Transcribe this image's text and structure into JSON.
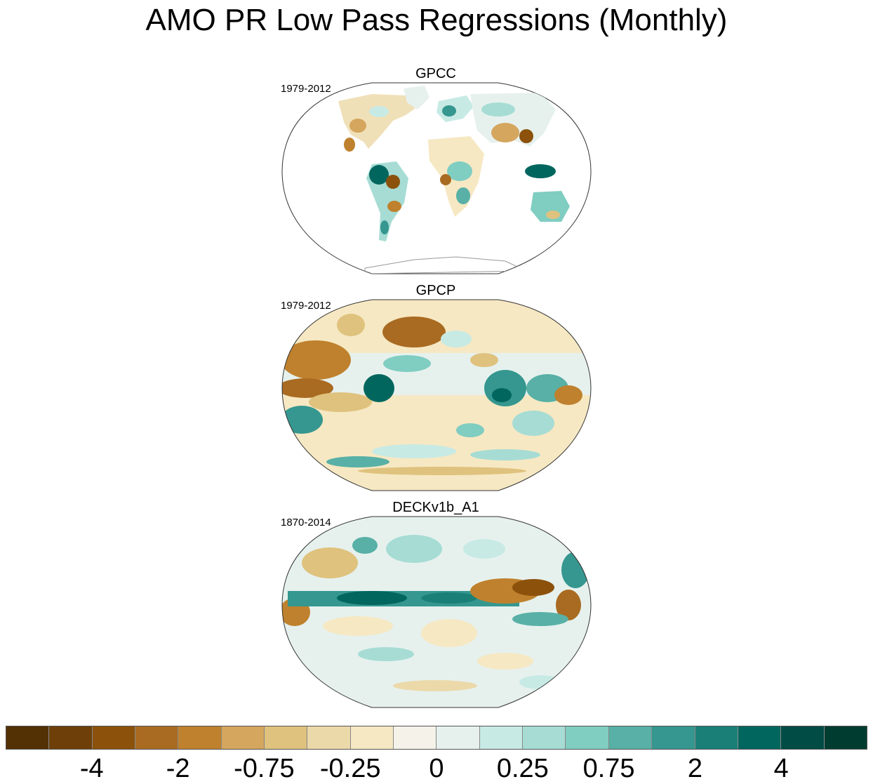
{
  "figure": {
    "title": "AMO PR Low Pass Regressions (Monthly)"
  },
  "panels": [
    {
      "title": "GPCC",
      "years": "1979-2012",
      "data_coverage": "land-only"
    },
    {
      "title": "GPCP",
      "years": "1979-2012",
      "data_coverage": "global"
    },
    {
      "title": "DECKv1b_A1",
      "years": "1870-2014",
      "data_coverage": "global"
    }
  ],
  "colorbar": {
    "colors": [
      "#543005",
      "#6e3f09",
      "#8c510a",
      "#a96b21",
      "#bf812d",
      "#d5a65e",
      "#dfc27d",
      "#ecd9aa",
      "#f6e8c3",
      "#f5f2ea",
      "#e6f1ee",
      "#c7eae5",
      "#a6dcd4",
      "#80cdc1",
      "#58b0a6",
      "#35978f",
      "#1a8077",
      "#01665e",
      "#014c45",
      "#003c30"
    ],
    "labels": [
      "-4",
      "-2",
      "-0.75",
      "-0.25",
      "0",
      "0.25",
      "0.75",
      "2",
      "4"
    ]
  },
  "chart_data": {
    "type": "heatmap",
    "title": "AMO PR Low Pass Regressions (Monthly)",
    "projection": "Winkel Tripel (global)",
    "panels": [
      "GPCC 1979-2012",
      "GPCP 1979-2012",
      "DECKv1b_A1 1870-2014"
    ],
    "levels": [
      -4,
      -2,
      -0.75,
      -0.25,
      0,
      0.25,
      0.75,
      2,
      4
    ],
    "colorbar_ticks": [
      "-4",
      "-2",
      "-0.75",
      "-0.25",
      "0",
      "0.25",
      "0.75",
      "2",
      "4"
    ],
    "palette": "brown-to-teal diverging",
    "legend_position": "bottom"
  }
}
